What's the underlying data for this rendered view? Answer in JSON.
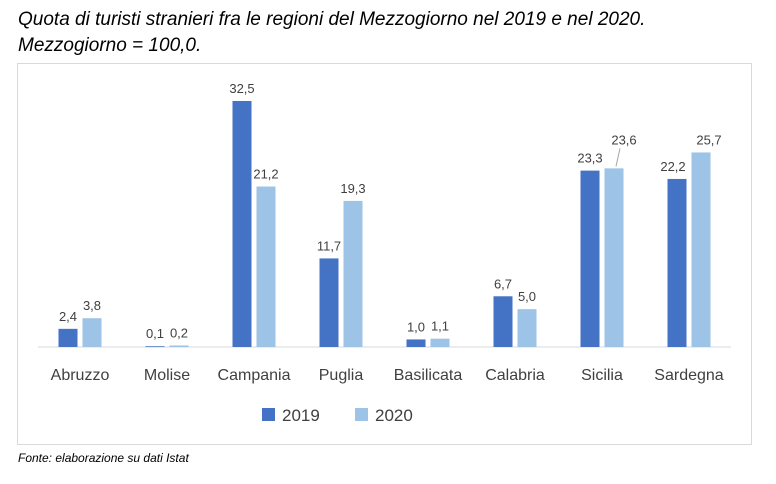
{
  "chart_data": {
    "type": "bar",
    "title_line1": "Quota di turisti stranieri fra le regioni del Mezzogiorno nel 2019 e nel 2020.",
    "title_line2": "Mezzogiorno = 100,0.",
    "categories": [
      "Abruzzo",
      "Molise",
      "Campania",
      "Puglia",
      "Basilicata",
      "Calabria",
      "Sicilia",
      "Sardegna"
    ],
    "series": [
      {
        "name": "2019",
        "color": "#4472C4",
        "values": [
          2.4,
          0.1,
          32.5,
          11.7,
          1.0,
          6.7,
          23.3,
          22.2
        ],
        "labels": [
          "2,4",
          "0,1",
          "32,5",
          "11,7",
          "1,0",
          "6,7",
          "23,3",
          "22,2"
        ]
      },
      {
        "name": "2020",
        "color": "#9DC3E6",
        "values": [
          3.8,
          0.2,
          21.2,
          19.3,
          1.1,
          5.0,
          23.6,
          25.7
        ],
        "labels": [
          "3,8",
          "0,2",
          "21,2",
          "19,3",
          "1,1",
          "5,0",
          "23,6",
          "25,7"
        ]
      }
    ],
    "ylim": [
      0,
      35
    ],
    "grid": false,
    "legend_position": "bottom",
    "source": "Fonte: elaborazione su dati Istat"
  }
}
